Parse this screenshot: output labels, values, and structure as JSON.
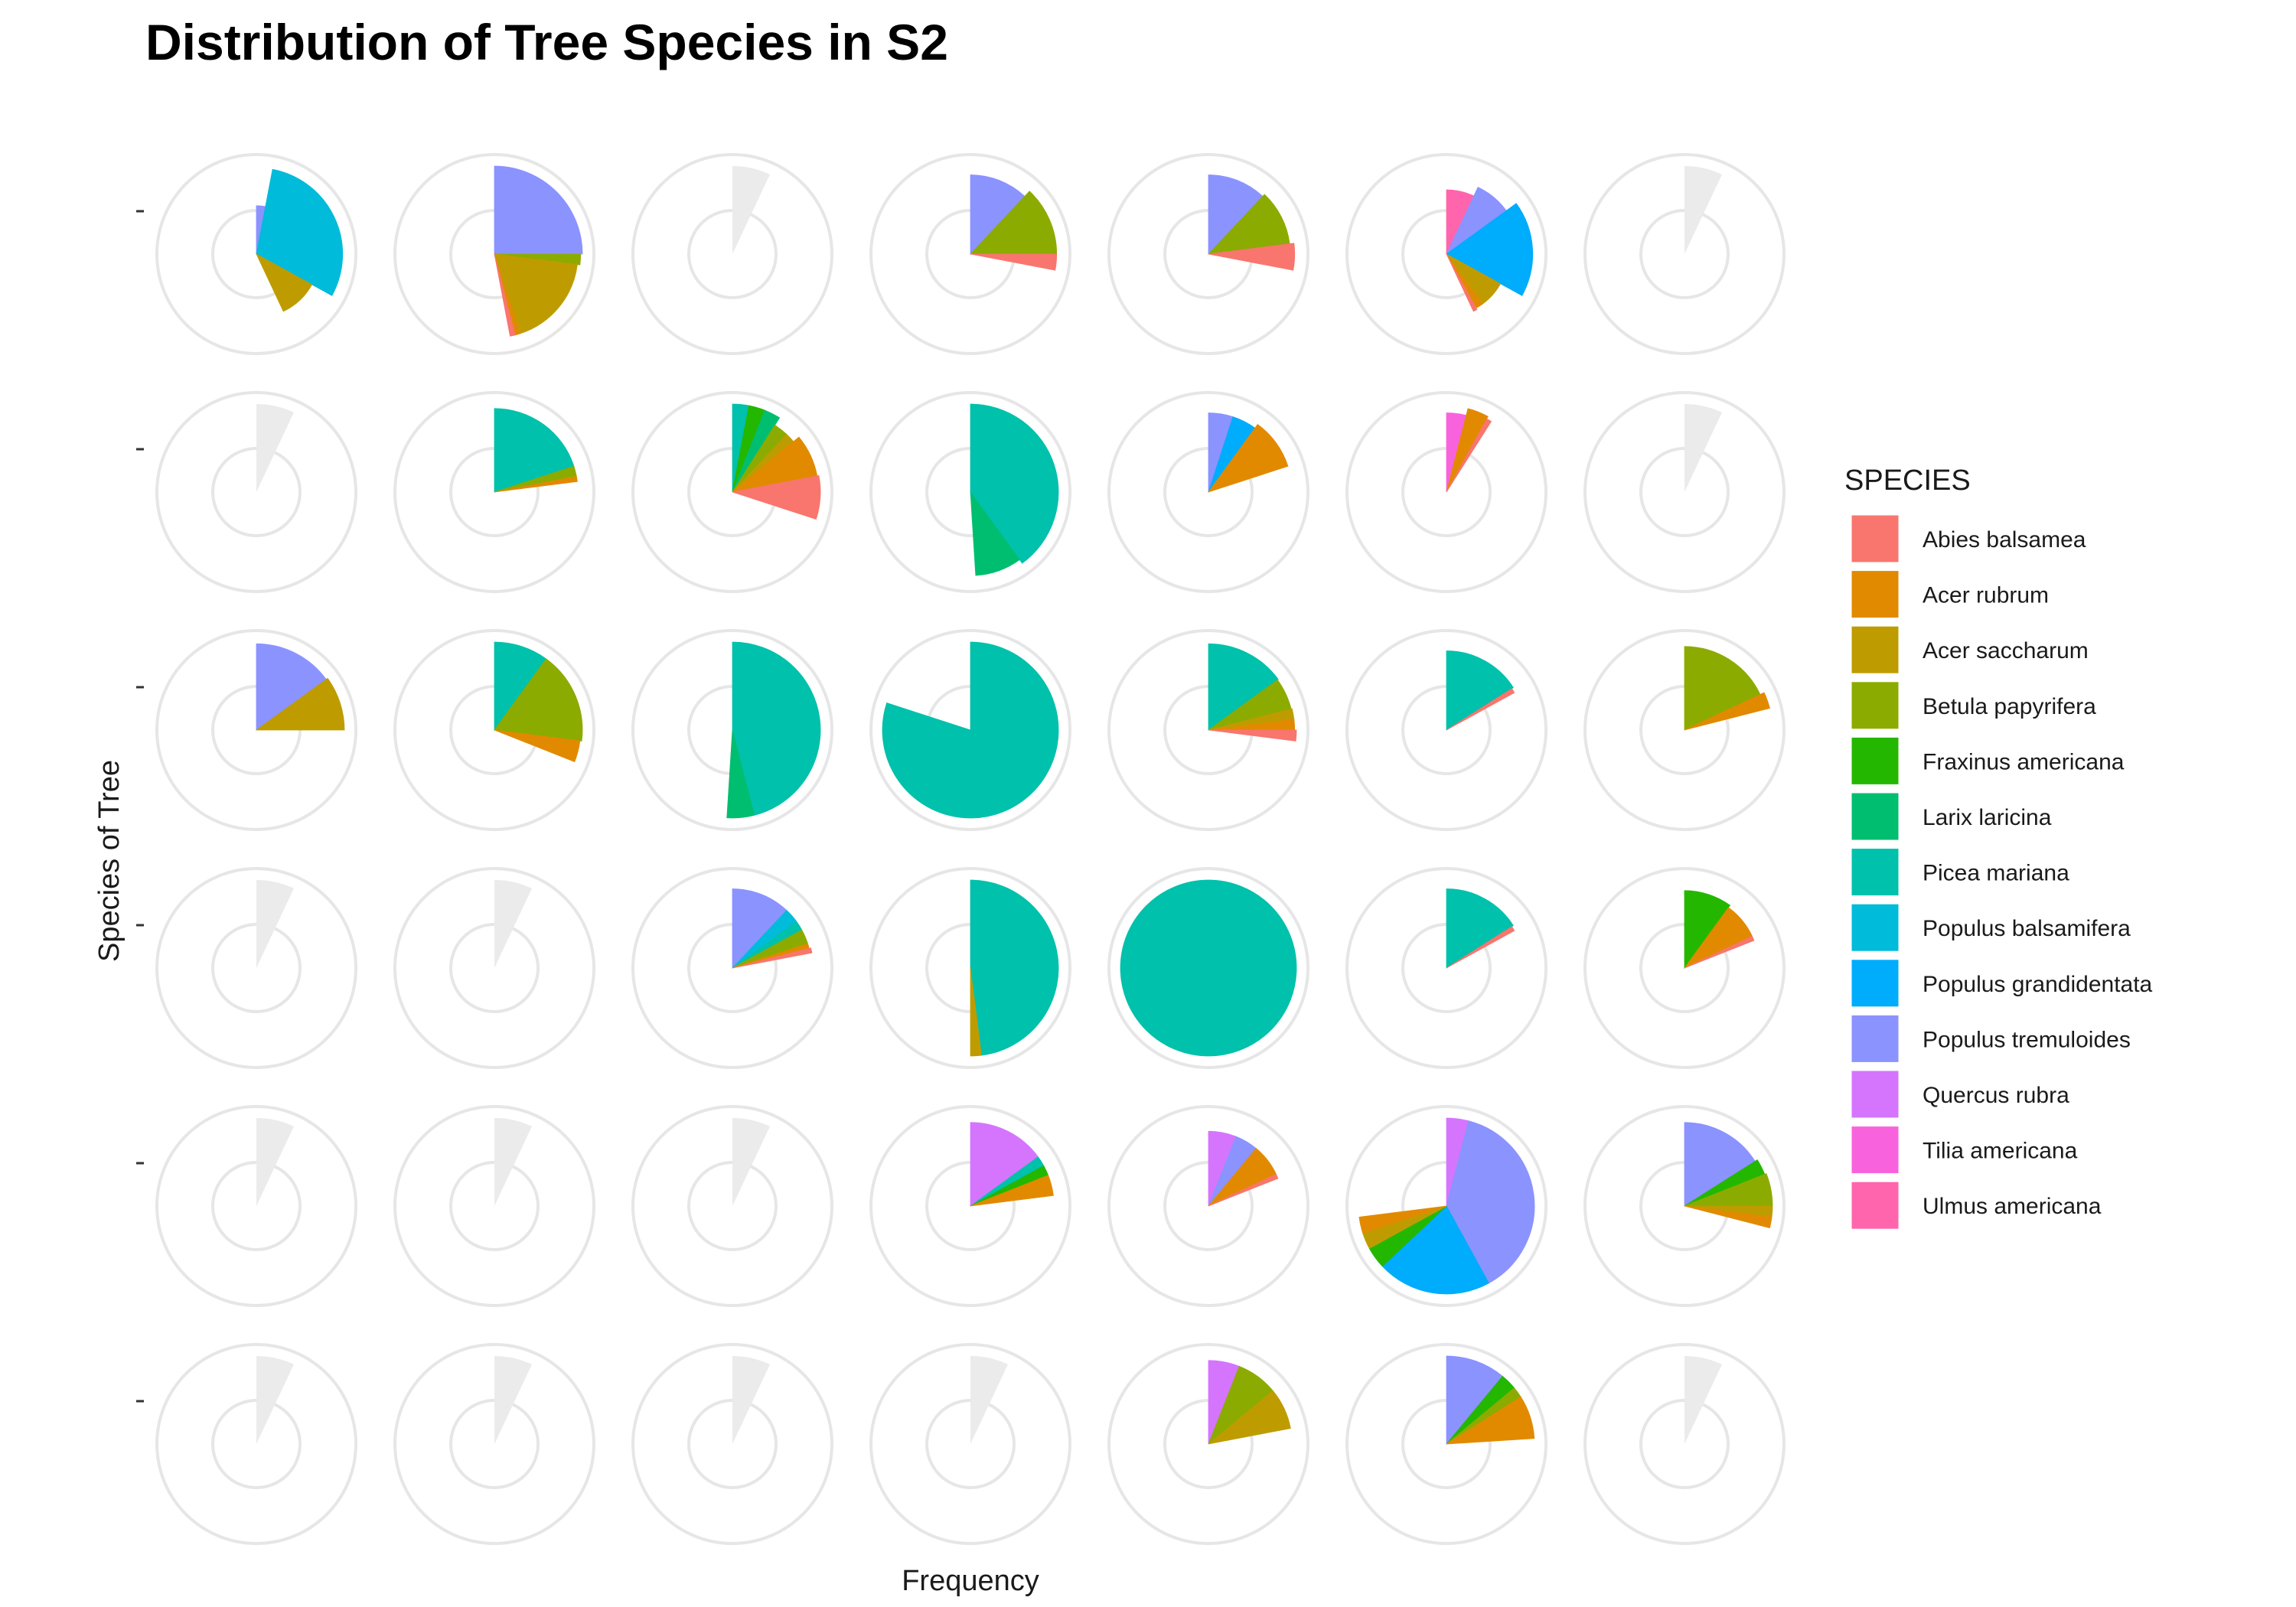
{
  "chart_data": {
    "type": "pie",
    "subtype": "faceted coord_polar pie grid",
    "title": "Distribution of Tree Species in S2",
    "xlabel": "Frequency",
    "ylabel": "Species of Tree",
    "legend": {
      "title": "SPECIES",
      "placement": "right",
      "entries": [
        {
          "name": "Abies balsamea",
          "color": "#F8766D"
        },
        {
          "name": "Acer rubrum",
          "color": "#E18A00"
        },
        {
          "name": "Acer saccharum",
          "color": "#BE9C00"
        },
        {
          "name": "Betula papyrifera",
          "color": "#8CAB00"
        },
        {
          "name": "Fraxinus americana",
          "color": "#24B700"
        },
        {
          "name": "Larix laricina",
          "color": "#00BE70"
        },
        {
          "name": "Picea mariana",
          "color": "#00C1AB"
        },
        {
          "name": "Populus balsamifera",
          "color": "#00BBDA"
        },
        {
          "name": "Populus grandidentata",
          "color": "#00ACFC"
        },
        {
          "name": "Populus tremuloides",
          "color": "#8B93FF"
        },
        {
          "name": "Quercus rubra",
          "color": "#D575FE"
        },
        {
          "name": "Tilia americana",
          "color": "#F962DD"
        },
        {
          "name": "Ulmus americana",
          "color": "#FF65AC"
        }
      ]
    },
    "grid": {
      "rows": 6,
      "cols": 7,
      "empty_wedge_turns": 0.07
    },
    "facets": [
      [
        [
          {
            "s": "Populus tremuloides",
            "a": 0.03,
            "r": 0.55
          },
          {
            "s": "Populus balsamifera",
            "a": 0.3,
            "r": 0.98
          },
          {
            "s": "Acer saccharum",
            "a": 0.1,
            "r": 0.72
          }
        ],
        [
          {
            "s": "Populus tremuloides",
            "a": 0.25,
            "r": 1.0
          },
          {
            "s": "Betula papyrifera",
            "a": 0.02,
            "r": 0.98
          },
          {
            "s": "Acer saccharum",
            "a": 0.18,
            "r": 0.95
          },
          {
            "s": "Acer rubrum",
            "a": 0.01,
            "r": 0.95
          },
          {
            "s": "Abies balsamea",
            "a": 0.01,
            "r": 0.95
          }
        ],
        [],
        [
          {
            "s": "Populus tremuloides",
            "a": 0.12,
            "r": 0.9
          },
          {
            "s": "Betula papyrifera",
            "a": 0.13,
            "r": 0.98
          },
          {
            "s": "Abies balsamea",
            "a": 0.03,
            "r": 0.98
          }
        ],
        [
          {
            "s": "Populus tremuloides",
            "a": 0.12,
            "r": 0.9
          },
          {
            "s": "Betula papyrifera",
            "a": 0.11,
            "r": 0.93
          },
          {
            "s": "Abies balsamea",
            "a": 0.05,
            "r": 0.98
          }
        ],
        [
          {
            "s": "Ulmus americana",
            "a": 0.07,
            "r": 0.73
          },
          {
            "s": "Populus tremuloides",
            "a": 0.08,
            "r": 0.84
          },
          {
            "s": "Populus grandidentata",
            "a": 0.18,
            "r": 0.98
          },
          {
            "s": "Acer saccharum",
            "a": 0.07,
            "r": 0.7
          },
          {
            "s": "Acer rubrum",
            "a": 0.02,
            "r": 0.7
          },
          {
            "s": "Abies balsamea",
            "a": 0.01,
            "r": 0.72
          }
        ]
      ],
      [
        [],
        [
          {
            "s": "Picea mariana",
            "a": 0.2,
            "r": 0.95
          },
          {
            "s": "Betula papyrifera",
            "a": 0.02,
            "r": 0.95
          },
          {
            "s": "Acer rubrum",
            "a": 0.01,
            "r": 0.95
          }
        ],
        [
          {
            "s": "Picea mariana",
            "a": 0.03,
            "r": 1.0
          },
          {
            "s": "Fraxinus americana",
            "a": 0.03,
            "r": 1.0
          },
          {
            "s": "Larix laricina",
            "a": 0.03,
            "r": 1.0
          },
          {
            "s": "Betula papyrifera",
            "a": 0.03,
            "r": 0.9
          },
          {
            "s": "Acer saccharum",
            "a": 0.02,
            "r": 0.9
          },
          {
            "s": "Acer rubrum",
            "a": 0.08,
            "r": 0.98
          },
          {
            "s": "Abies balsamea",
            "a": 0.08,
            "r": 1.0
          }
        ],
        [
          {
            "s": "Picea mariana",
            "a": 0.4,
            "r": 1.0
          },
          {
            "s": "Larix laricina",
            "a": 0.09,
            "r": 0.95
          }
        ],
        [
          {
            "s": "Populus tremuloides",
            "a": 0.05,
            "r": 0.9
          },
          {
            "s": "Populus grandidentata",
            "a": 0.05,
            "r": 0.9
          },
          {
            "s": "Acer rubrum",
            "a": 0.1,
            "r": 0.95
          }
        ],
        [
          {
            "s": "Tilia americana",
            "a": 0.04,
            "r": 0.9
          },
          {
            "s": "Acer rubrum",
            "a": 0.04,
            "r": 0.98
          },
          {
            "s": "Abies balsamea",
            "a": 0.01,
            "r": 0.95
          }
        ]
      ],
      [
        [
          {
            "s": "Populus tremuloides",
            "a": 0.15,
            "r": 0.98
          },
          {
            "s": "Acer saccharum",
            "a": 0.1,
            "r": 1.0
          }
        ],
        [
          {
            "s": "Picea mariana",
            "a": 0.1,
            "r": 1.0
          },
          {
            "s": "Betula papyrifera",
            "a": 0.17,
            "r": 1.0
          },
          {
            "s": "Acer rubrum",
            "a": 0.04,
            "r": 0.98
          }
        ],
        [
          {
            "s": "Picea mariana",
            "a": 0.46,
            "r": 1.0
          },
          {
            "s": "Larix laricina",
            "a": 0.05,
            "r": 1.0
          }
        ],
        [
          {
            "s": "Picea mariana",
            "a": 0.8,
            "r": 1.0
          }
        ],
        [
          {
            "s": "Picea mariana",
            "a": 0.15,
            "r": 0.98
          },
          {
            "s": "Betula papyrifera",
            "a": 0.06,
            "r": 0.97
          },
          {
            "s": "Acer saccharum",
            "a": 0.02,
            "r": 0.98
          },
          {
            "s": "Acer rubrum",
            "a": 0.02,
            "r": 0.98
          },
          {
            "s": "Abies balsamea",
            "a": 0.02,
            "r": 1.0
          }
        ],
        [
          {
            "s": "Picea mariana",
            "a": 0.16,
            "r": 0.9
          },
          {
            "s": "Abies balsamea",
            "a": 0.01,
            "r": 0.88
          }
        ],
        [
          {
            "s": "Betula papyrifera",
            "a": 0.18,
            "r": 0.95
          },
          {
            "s": "Acer rubrum",
            "a": 0.03,
            "r": 1.0
          }
        ]
      ],
      [
        [],
        [],
        [
          {
            "s": "Populus tremuloides",
            "a": 0.12,
            "r": 0.9
          },
          {
            "s": "Populus balsamifera",
            "a": 0.03,
            "r": 0.9
          },
          {
            "s": "Picea mariana",
            "a": 0.02,
            "r": 0.9
          },
          {
            "s": "Betula papyrifera",
            "a": 0.03,
            "r": 0.9
          },
          {
            "s": "Acer rubrum",
            "a": 0.01,
            "r": 0.9
          },
          {
            "s": "Abies balsamea",
            "a": 0.01,
            "r": 0.92
          }
        ],
        [
          {
            "s": "Picea mariana",
            "a": 0.48,
            "r": 1.0
          },
          {
            "s": "Acer saccharum",
            "a": 0.02,
            "r": 1.0
          }
        ],
        [
          {
            "s": "Picea mariana",
            "a": 1.0,
            "r": 1.0
          }
        ],
        [
          {
            "s": "Picea mariana",
            "a": 0.16,
            "r": 0.9
          },
          {
            "s": "Abies balsamea",
            "a": 0.01,
            "r": 0.88
          }
        ],
        [
          {
            "s": "Fraxinus americana",
            "a": 0.1,
            "r": 0.88
          },
          {
            "s": "Acer rubrum",
            "a": 0.08,
            "r": 0.85
          },
          {
            "s": "Abies balsamea",
            "a": 0.01,
            "r": 0.85
          }
        ]
      ],
      [
        [],
        [],
        [],
        [
          {
            "s": "Quercus rubra",
            "a": 0.15,
            "r": 0.95
          },
          {
            "s": "Picea mariana",
            "a": 0.02,
            "r": 0.95
          },
          {
            "s": "Fraxinus americana",
            "a": 0.02,
            "r": 0.95
          },
          {
            "s": "Acer rubrum",
            "a": 0.04,
            "r": 0.95
          }
        ],
        [
          {
            "s": "Quercus rubra",
            "a": 0.06,
            "r": 0.85
          },
          {
            "s": "Populus tremuloides",
            "a": 0.05,
            "r": 0.85
          },
          {
            "s": "Acer rubrum",
            "a": 0.07,
            "r": 0.85
          },
          {
            "s": "Abies balsamea",
            "a": 0.01,
            "r": 0.85
          }
        ],
        [
          {
            "s": "Quercus rubra",
            "a": 0.04,
            "r": 1.0
          },
          {
            "s": "Populus tremuloides",
            "a": 0.38,
            "r": 1.0
          },
          {
            "s": "Populus grandidentata",
            "a": 0.21,
            "r": 1.0
          },
          {
            "s": "Fraxinus americana",
            "a": 0.04,
            "r": 1.0
          },
          {
            "s": "Acer saccharum",
            "a": 0.03,
            "r": 1.0
          },
          {
            "s": "Acer rubrum",
            "a": 0.03,
            "r": 1.0
          }
        ],
        [
          {
            "s": "Populus tremuloides",
            "a": 0.16,
            "r": 0.95
          },
          {
            "s": "Fraxinus americana",
            "a": 0.03,
            "r": 0.98
          },
          {
            "s": "Betula papyrifera",
            "a": 0.06,
            "r": 1.0
          },
          {
            "s": "Acer saccharum",
            "a": 0.02,
            "r": 1.0
          },
          {
            "s": "Acer rubrum",
            "a": 0.02,
            "r": 1.0
          }
        ]
      ],
      [
        [],
        [],
        [],
        [],
        [
          {
            "s": "Quercus rubra",
            "a": 0.06,
            "r": 0.95
          },
          {
            "s": "Betula papyrifera",
            "a": 0.08,
            "r": 0.95
          },
          {
            "s": "Acer saccharum",
            "a": 0.08,
            "r": 0.95
          }
        ],
        [
          {
            "s": "Populus tremuloides",
            "a": 0.11,
            "r": 1.0
          },
          {
            "s": "Fraxinus americana",
            "a": 0.03,
            "r": 1.0
          },
          {
            "s": "Betula papyrifera",
            "a": 0.02,
            "r": 1.0
          },
          {
            "s": "Acer rubrum",
            "a": 0.08,
            "r": 1.0
          }
        ]
      ]
    ]
  }
}
